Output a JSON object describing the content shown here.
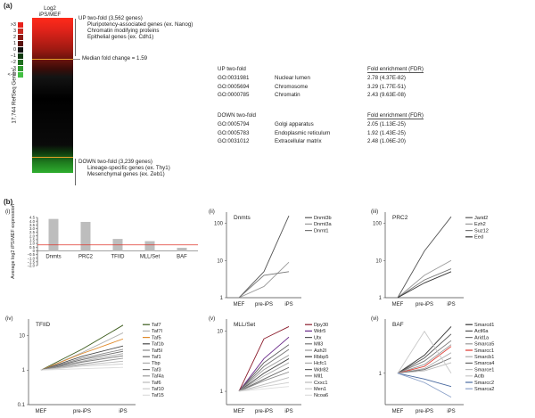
{
  "panel_a": {
    "label": "(a)",
    "heatmap_header": [
      "Log2",
      "iPS/MEF"
    ],
    "scale": [
      ">3",
      "3",
      "2",
      "1",
      "0",
      "−1",
      "−2",
      "−3",
      "<−3"
    ],
    "scale_colors": [
      "#e8221c",
      "#c92a20",
      "#8c1a14",
      "#5a120e",
      "#111111",
      "#103a10",
      "#1f6e1f",
      "#2f9b2f",
      "#44c044"
    ],
    "y_axis_label": "17,744 RefSeq Genes",
    "up_title": "UP two-fold (3,562 genes)",
    "up_items": [
      "Pluripotency-associated genes (ex. Nanog)",
      "Chromatin modifying proteins",
      "Epithelial genes (ex. Cdh1)"
    ],
    "median_label": "Median fold change = 1.59",
    "down_title": "DOWN two-fold (3,239 genes)",
    "down_items": [
      "Lineage-specific genes (ex. Thy1)",
      "Mesenchymal genes (ex. Zeb1)"
    ],
    "go_up": {
      "header": "UP two-fold",
      "col": "Fold enrichment (FDR)",
      "rows": [
        [
          "GO:0031981",
          "Nuclear lumen",
          "2.78 (4.37E-82)"
        ],
        [
          "GO:0005694",
          "Chromosome",
          "3.29 (1.77E-51)"
        ],
        [
          "GO:0000785",
          "Chromatin",
          "2.43 (9.63E-08)"
        ]
      ]
    },
    "go_down": {
      "header": "DOWN two-fold",
      "col": "Fold enrichment (FDR)",
      "rows": [
        [
          "GO:0005794",
          "Golgi apparatus",
          "2.05 (1.13E-25)"
        ],
        [
          "GO:0005783",
          "Endoplasmic reticulum",
          "1.92 (1.43E-25)"
        ],
        [
          "GO:0031012",
          "Extracellular matrix",
          "2.48 (1.06E-20)"
        ]
      ]
    }
  },
  "panel_b": {
    "label": "(b)",
    "sub_labels": [
      "(i)",
      "(ii)",
      "(iii)",
      "(iv)",
      "(v)",
      "(vi)"
    ],
    "titles": [
      "",
      "Dnmts",
      "PRC2",
      "TFIID",
      "MLL/Set",
      "BAF"
    ]
  },
  "chart_data": [
    {
      "type": "bar",
      "panel": "(i)",
      "ylabel": "Average log2 iPS/MEF expression",
      "categories": [
        "Dnmts",
        "PRC2",
        "TFIID",
        "MLL/Set",
        "BAF"
      ],
      "values": [
        4.3,
        3.9,
        1.6,
        1.3,
        0.4
      ],
      "ylim": [
        -2.0,
        4.5
      ],
      "yticks": [
        "4.5",
        "4.0",
        "3.5",
        "3.0",
        "2.5",
        "2.0",
        "1.5",
        "1.0",
        "0.5",
        "0",
        "−0.5",
        "−1.0",
        "−1.5",
        "−2.0"
      ],
      "reference_line": 0.8,
      "bar_color": "#bdbdbd",
      "line_color": "#e0362c"
    },
    {
      "type": "line",
      "panel": "(ii)",
      "title": "Dnmts",
      "x": [
        "MEF",
        "pre-iPS",
        "iPS"
      ],
      "log_y": true,
      "yticks": [
        "1",
        "10",
        "100"
      ],
      "series": [
        {
          "name": "Dnmt3b",
          "values": [
            1,
            5,
            160
          ],
          "color": "#555555"
        },
        {
          "name": "Dnmt3a",
          "values": [
            1,
            2,
            9
          ],
          "color": "#9a9a9a"
        },
        {
          "name": "Dnmt1",
          "values": [
            1,
            4,
            5
          ],
          "color": "#777777"
        }
      ]
    },
    {
      "type": "line",
      "panel": "(iii)",
      "title": "PRC2",
      "x": [
        "MEF",
        "pre-iPS",
        "iPS"
      ],
      "log_y": true,
      "yticks": [
        "1",
        "10",
        "100"
      ],
      "series": [
        {
          "name": "Jarid2",
          "values": [
            1,
            18,
            150
          ],
          "color": "#555555"
        },
        {
          "name": "Ezh2",
          "values": [
            1,
            4,
            10
          ],
          "color": "#9a9a9a"
        },
        {
          "name": "Suz12",
          "values": [
            1,
            3,
            6
          ],
          "color": "#777777"
        },
        {
          "name": "Eed",
          "values": [
            1,
            2.5,
            5
          ],
          "color": "#333333"
        }
      ]
    },
    {
      "type": "line",
      "panel": "(iv)",
      "title": "TFIID",
      "x": [
        "MEF",
        "pre-iPS",
        "iPS"
      ],
      "log_y": true,
      "yticks": [
        "0.1",
        "1",
        "10"
      ],
      "series": [
        {
          "name": "Taf7",
          "values": [
            1,
            4,
            20
          ],
          "color": "#3a5a1a"
        },
        {
          "name": "Taf7l",
          "values": [
            1,
            3.2,
            12
          ],
          "color": "#b0b0b0"
        },
        {
          "name": "Taf5",
          "values": [
            1,
            3,
            8
          ],
          "color": "#e08a2a"
        },
        {
          "name": "Taf1b",
          "values": [
            1,
            2.5,
            5
          ],
          "color": "#4a4a4a"
        },
        {
          "name": "Taf5l",
          "values": [
            1,
            2.2,
            4
          ],
          "color": "#888888"
        },
        {
          "name": "Taf1",
          "values": [
            1,
            2,
            3.5
          ],
          "color": "#666666"
        },
        {
          "name": "Tbp",
          "values": [
            1,
            1.8,
            3
          ],
          "color": "#aaaaaa"
        },
        {
          "name": "Taf3",
          "values": [
            1,
            1.7,
            2.6
          ],
          "color": "#777777"
        },
        {
          "name": "Taf4a",
          "values": [
            1,
            1.5,
            2.2
          ],
          "color": "#999999"
        },
        {
          "name": "Taf6",
          "values": [
            1,
            1.4,
            1.8
          ],
          "color": "#bbbbbb"
        },
        {
          "name": "Taf10",
          "values": [
            1,
            1.3,
            1.5
          ],
          "color": "#cccccc"
        },
        {
          "name": "Taf15",
          "values": [
            1,
            1.1,
            1.2
          ],
          "color": "#dddddd"
        }
      ]
    },
    {
      "type": "line",
      "panel": "(v)",
      "title": "MLL/Set",
      "x": [
        "MEF",
        "pre-iPS",
        "iPS"
      ],
      "log_y": true,
      "yticks": [
        "1",
        "10"
      ],
      "series": [
        {
          "name": "Dpy30",
          "values": [
            1,
            7.5,
            12
          ],
          "color": "#8a1a2a"
        },
        {
          "name": "Wdr5",
          "values": [
            1,
            3.5,
            8
          ],
          "color": "#6a2a8a"
        },
        {
          "name": "Utx",
          "values": [
            1,
            3,
            6
          ],
          "color": "#555555"
        },
        {
          "name": "Mll3",
          "values": [
            1,
            2.6,
            5
          ],
          "color": "#777777"
        },
        {
          "name": "Ash2l",
          "values": [
            1,
            2.3,
            4
          ],
          "color": "#999999"
        },
        {
          "name": "Rbbp5",
          "values": [
            1,
            2,
            3.5
          ],
          "color": "#444444"
        },
        {
          "name": "Hcfc1",
          "values": [
            1,
            1.8,
            3
          ],
          "color": "#aaaaaa"
        },
        {
          "name": "Wdr82",
          "values": [
            1,
            1.6,
            2.5
          ],
          "color": "#666666"
        },
        {
          "name": "Mll1",
          "values": [
            1,
            1.5,
            2.1
          ],
          "color": "#888888"
        },
        {
          "name": "Cxxc1",
          "values": [
            1,
            1.3,
            1.7
          ],
          "color": "#bbbbbb"
        },
        {
          "name": "Men1",
          "values": [
            1,
            1.2,
            1.4
          ],
          "color": "#cccccc"
        },
        {
          "name": "Ncoa6",
          "values": [
            1,
            1.1,
            1.2
          ],
          "color": "#dddddd"
        }
      ]
    },
    {
      "type": "line",
      "panel": "(vi)",
      "title": "BAF",
      "x": [
        "MEF",
        "pre-iPS",
        "iPS"
      ],
      "log_y": true,
      "yticks": [
        "1"
      ],
      "series": [
        {
          "name": "Smarcd1",
          "values": [
            1,
            2,
            6
          ],
          "color": "#333333"
        },
        {
          "name": "Actl6a",
          "values": [
            1,
            1.8,
            4.5
          ],
          "color": "#555555"
        },
        {
          "name": "Arid1a",
          "values": [
            1,
            1.6,
            3.5
          ],
          "color": "#777777"
        },
        {
          "name": "Smarca5",
          "values": [
            1,
            1.4,
            3
          ],
          "color": "#999999"
        },
        {
          "name": "Smarcc1",
          "values": [
            1,
            1.3,
            2.8
          ],
          "color": "#e0362c"
        },
        {
          "name": "Smarcb1",
          "values": [
            1,
            1.2,
            2.2
          ],
          "color": "#aaaaaa"
        },
        {
          "name": "Smarca4",
          "values": [
            1,
            1.15,
            1.8
          ],
          "color": "#666666"
        },
        {
          "name": "Smarce1",
          "values": [
            1,
            1.1,
            1.5
          ],
          "color": "#bbbbbb"
        },
        {
          "name": "Actb",
          "values": [
            1,
            5,
            1
          ],
          "color": "#c8c8c8"
        },
        {
          "name": "Smarcc2",
          "values": [
            1,
            0.8,
            0.6
          ],
          "color": "#4a6aa0"
        },
        {
          "name": "Smarca2",
          "values": [
            1,
            0.7,
            0.4
          ],
          "color": "#8aa0c8"
        }
      ]
    }
  ]
}
